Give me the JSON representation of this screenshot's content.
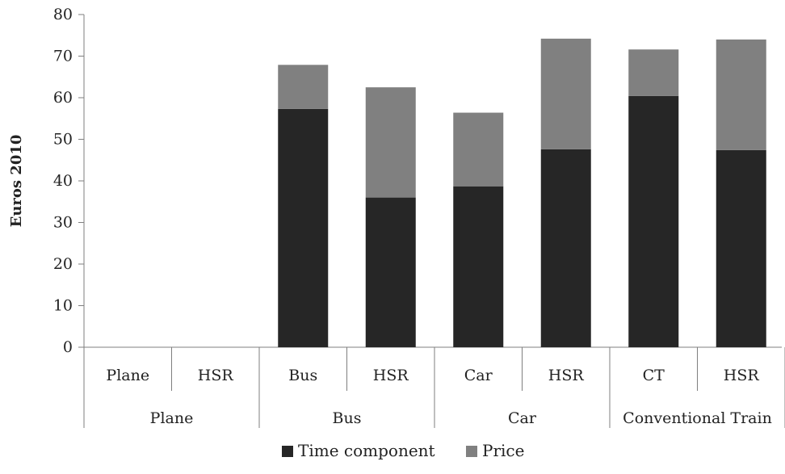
{
  "chart_data": {
    "type": "bar",
    "stacked": true,
    "title": "",
    "xlabel": "",
    "ylabel": "Euros 2010",
    "ylim": [
      0,
      80
    ],
    "yticks": [
      0,
      10,
      20,
      30,
      40,
      50,
      60,
      70,
      80
    ],
    "grid": false,
    "legend_position": "bottom",
    "categories": [
      "Plane",
      "HSR",
      "Bus",
      "HSR",
      "Car",
      "HSR",
      "CT",
      "HSR"
    ],
    "groups": [
      {
        "label": "Plane",
        "span": 2
      },
      {
        "label": "Bus",
        "span": 2
      },
      {
        "label": "Car",
        "span": 2
      },
      {
        "label": "Conventional Train",
        "span": 2
      }
    ],
    "series": [
      {
        "name": "Time component",
        "color": "#262626",
        "values": [
          0,
          0,
          57.3,
          36.0,
          38.7,
          47.6,
          60.4,
          47.4
        ]
      },
      {
        "name": "Price",
        "color": "#808080",
        "values": [
          0,
          0,
          10.6,
          26.5,
          17.7,
          26.6,
          11.2,
          26.6
        ]
      }
    ]
  }
}
